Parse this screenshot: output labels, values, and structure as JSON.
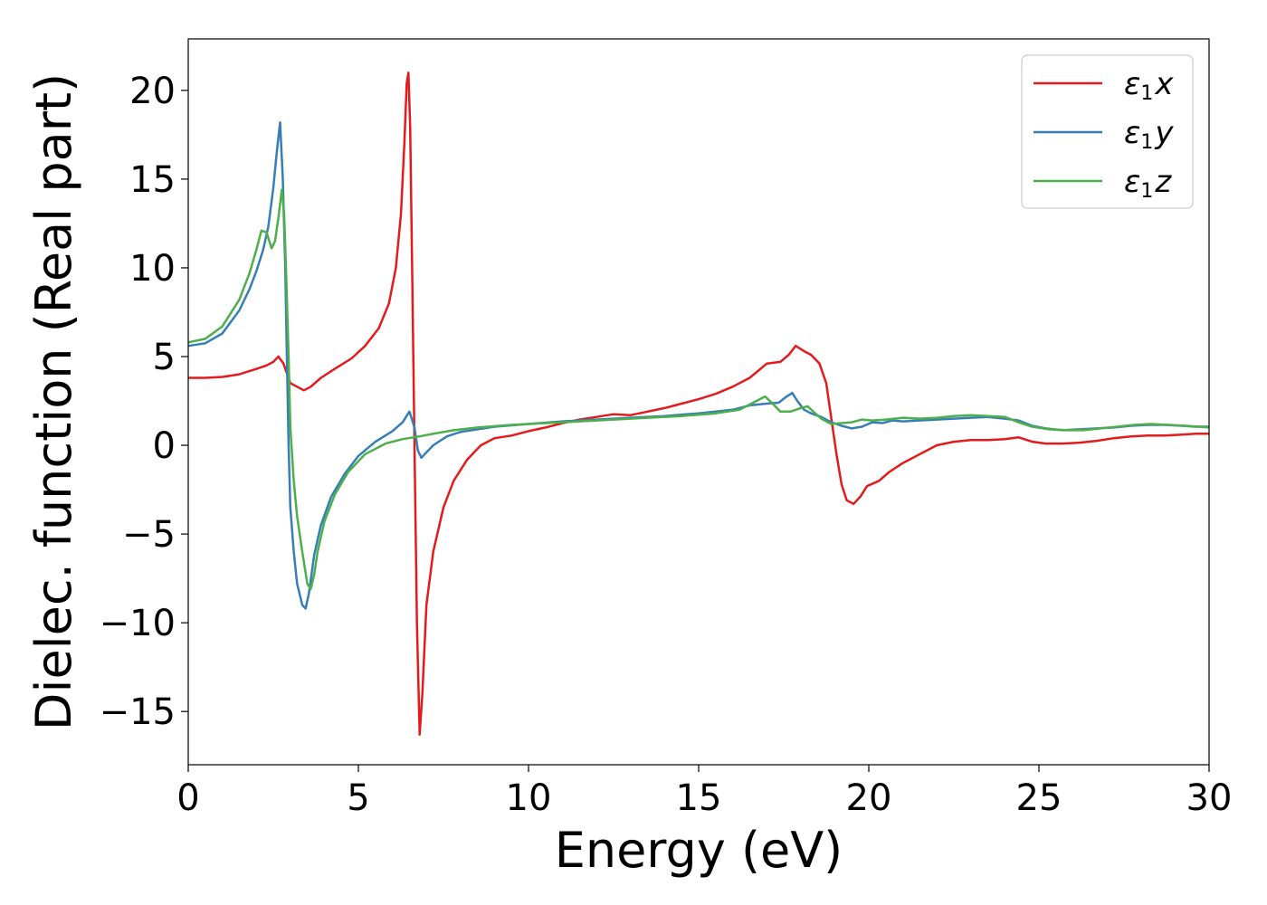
{
  "chart_data": {
    "type": "line",
    "title": "",
    "xlabel": "Energy (eV)",
    "ylabel": "Dielec. function (Real part)",
    "xlim": [
      0,
      30
    ],
    "ylim": [
      -18.0,
      22.9
    ],
    "xticks": [
      0,
      5,
      10,
      15,
      20,
      25,
      30
    ],
    "yticks": [
      -15,
      -10,
      -5,
      0,
      5,
      10,
      15,
      20
    ],
    "xtick_labels": [
      "0",
      "5",
      "10",
      "15",
      "20",
      "25",
      "30"
    ],
    "ytick_labels": [
      "−15",
      "−10",
      "−5",
      "0",
      "5",
      "10",
      "15",
      "20"
    ],
    "grid": false,
    "legend_position": "top-right",
    "series": [
      {
        "name": "ε1x",
        "legend": {
          "symbol": "ε",
          "sub": "1",
          "var": "x"
        },
        "color": "#e41a1c",
        "points": [
          [
            0,
            3.8
          ],
          [
            0.5,
            3.8
          ],
          [
            1.0,
            3.85
          ],
          [
            1.5,
            4.0
          ],
          [
            2.0,
            4.3
          ],
          [
            2.3,
            4.5
          ],
          [
            2.5,
            4.7
          ],
          [
            2.65,
            5.0
          ],
          [
            2.8,
            4.6
          ],
          [
            3.0,
            3.5
          ],
          [
            3.2,
            3.3
          ],
          [
            3.4,
            3.1
          ],
          [
            3.6,
            3.3
          ],
          [
            3.9,
            3.8
          ],
          [
            4.3,
            4.3
          ],
          [
            4.8,
            4.9
          ],
          [
            5.2,
            5.6
          ],
          [
            5.6,
            6.6
          ],
          [
            5.9,
            8.0
          ],
          [
            6.1,
            10.0
          ],
          [
            6.25,
            13.0
          ],
          [
            6.35,
            17.0
          ],
          [
            6.42,
            20.4
          ],
          [
            6.47,
            21.0
          ],
          [
            6.52,
            18.0
          ],
          [
            6.58,
            10.0
          ],
          [
            6.65,
            0.0
          ],
          [
            6.72,
            -10.0
          ],
          [
            6.8,
            -16.3
          ],
          [
            6.88,
            -14.0
          ],
          [
            7.0,
            -9.0
          ],
          [
            7.2,
            -6.0
          ],
          [
            7.5,
            -3.5
          ],
          [
            7.8,
            -2.0
          ],
          [
            8.2,
            -0.8
          ],
          [
            8.6,
            0.0
          ],
          [
            9.0,
            0.4
          ],
          [
            9.5,
            0.55
          ],
          [
            10.0,
            0.8
          ],
          [
            10.5,
            1.0
          ],
          [
            11.0,
            1.25
          ],
          [
            11.5,
            1.45
          ],
          [
            12.0,
            1.6
          ],
          [
            12.5,
            1.75
          ],
          [
            13.0,
            1.7
          ],
          [
            13.5,
            1.9
          ],
          [
            14.0,
            2.1
          ],
          [
            14.5,
            2.35
          ],
          [
            15.0,
            2.6
          ],
          [
            15.5,
            2.9
          ],
          [
            16.0,
            3.3
          ],
          [
            16.5,
            3.8
          ],
          [
            17.0,
            4.6
          ],
          [
            17.4,
            4.7
          ],
          [
            17.65,
            5.1
          ],
          [
            17.85,
            5.6
          ],
          [
            18.1,
            5.3
          ],
          [
            18.3,
            5.1
          ],
          [
            18.55,
            4.6
          ],
          [
            18.75,
            3.5
          ],
          [
            18.9,
            1.5
          ],
          [
            19.05,
            -0.5
          ],
          [
            19.2,
            -2.2
          ],
          [
            19.35,
            -3.1
          ],
          [
            19.55,
            -3.3
          ],
          [
            19.75,
            -2.9
          ],
          [
            19.95,
            -2.3
          ],
          [
            20.3,
            -2.0
          ],
          [
            20.6,
            -1.5
          ],
          [
            21.0,
            -1.0
          ],
          [
            21.5,
            -0.5
          ],
          [
            22.0,
            0.0
          ],
          [
            22.5,
            0.2
          ],
          [
            23.0,
            0.3
          ],
          [
            23.5,
            0.3
          ],
          [
            24.0,
            0.35
          ],
          [
            24.4,
            0.45
          ],
          [
            24.8,
            0.2
          ],
          [
            25.2,
            0.1
          ],
          [
            25.7,
            0.1
          ],
          [
            26.2,
            0.15
          ],
          [
            26.7,
            0.25
          ],
          [
            27.2,
            0.4
          ],
          [
            27.7,
            0.5
          ],
          [
            28.2,
            0.55
          ],
          [
            28.7,
            0.55
          ],
          [
            29.2,
            0.6
          ],
          [
            29.6,
            0.65
          ],
          [
            30.0,
            0.65
          ]
        ]
      },
      {
        "name": "ε1y",
        "legend": {
          "symbol": "ε",
          "sub": "1",
          "var": "y"
        },
        "color": "#377eb8",
        "points": [
          [
            0,
            5.6
          ],
          [
            0.5,
            5.75
          ],
          [
            1.0,
            6.3
          ],
          [
            1.5,
            7.6
          ],
          [
            1.8,
            8.8
          ],
          [
            2.0,
            9.8
          ],
          [
            2.2,
            11.0
          ],
          [
            2.35,
            12.3
          ],
          [
            2.5,
            14.5
          ],
          [
            2.6,
            16.5
          ],
          [
            2.7,
            18.2
          ],
          [
            2.78,
            15.0
          ],
          [
            2.85,
            10.0
          ],
          [
            2.9,
            5.0
          ],
          [
            2.95,
            0.0
          ],
          [
            3.0,
            -3.5
          ],
          [
            3.1,
            -6.0
          ],
          [
            3.2,
            -7.8
          ],
          [
            3.35,
            -9.0
          ],
          [
            3.45,
            -9.2
          ],
          [
            3.55,
            -8.3
          ],
          [
            3.7,
            -6.2
          ],
          [
            3.9,
            -4.5
          ],
          [
            4.2,
            -2.9
          ],
          [
            4.6,
            -1.6
          ],
          [
            5.0,
            -0.6
          ],
          [
            5.5,
            0.2
          ],
          [
            6.0,
            0.8
          ],
          [
            6.3,
            1.3
          ],
          [
            6.5,
            1.9
          ],
          [
            6.65,
            1.0
          ],
          [
            6.75,
            -0.3
          ],
          [
            6.85,
            -0.7
          ],
          [
            7.0,
            -0.4
          ],
          [
            7.2,
            0.0
          ],
          [
            7.6,
            0.5
          ],
          [
            8.0,
            0.75
          ],
          [
            9.0,
            1.05
          ],
          [
            10.0,
            1.2
          ],
          [
            11.0,
            1.35
          ],
          [
            12.0,
            1.45
          ],
          [
            13.0,
            1.55
          ],
          [
            14.0,
            1.65
          ],
          [
            15.0,
            1.8
          ],
          [
            16.0,
            2.0
          ],
          [
            16.5,
            2.25
          ],
          [
            17.0,
            2.35
          ],
          [
            17.35,
            2.4
          ],
          [
            17.55,
            2.7
          ],
          [
            17.75,
            2.95
          ],
          [
            17.9,
            2.5
          ],
          [
            18.1,
            2.0
          ],
          [
            18.3,
            1.8
          ],
          [
            18.6,
            1.6
          ],
          [
            18.9,
            1.3
          ],
          [
            19.2,
            1.1
          ],
          [
            19.5,
            0.95
          ],
          [
            19.8,
            1.05
          ],
          [
            20.1,
            1.3
          ],
          [
            20.4,
            1.25
          ],
          [
            20.7,
            1.4
          ],
          [
            21.0,
            1.35
          ],
          [
            21.5,
            1.4
          ],
          [
            22.0,
            1.45
          ],
          [
            22.5,
            1.5
          ],
          [
            23.0,
            1.55
          ],
          [
            23.5,
            1.6
          ],
          [
            24.0,
            1.5
          ],
          [
            24.4,
            1.4
          ],
          [
            24.8,
            1.1
          ],
          [
            25.2,
            0.95
          ],
          [
            25.7,
            0.85
          ],
          [
            26.2,
            0.9
          ],
          [
            26.7,
            0.95
          ],
          [
            27.2,
            1.0
          ],
          [
            27.7,
            1.1
          ],
          [
            28.2,
            1.15
          ],
          [
            28.7,
            1.15
          ],
          [
            29.2,
            1.1
          ],
          [
            29.6,
            1.05
          ],
          [
            30.0,
            1.05
          ]
        ]
      },
      {
        "name": "ε1z",
        "legend": {
          "symbol": "ε",
          "sub": "1",
          "var": "z"
        },
        "color": "#4daf4a",
        "points": [
          [
            0,
            5.8
          ],
          [
            0.5,
            6.0
          ],
          [
            1.0,
            6.7
          ],
          [
            1.5,
            8.2
          ],
          [
            1.8,
            9.7
          ],
          [
            2.0,
            11.0
          ],
          [
            2.15,
            12.1
          ],
          [
            2.3,
            12.0
          ],
          [
            2.45,
            11.1
          ],
          [
            2.55,
            11.5
          ],
          [
            2.65,
            12.8
          ],
          [
            2.75,
            14.4
          ],
          [
            2.82,
            13.0
          ],
          [
            2.88,
            9.5
          ],
          [
            2.95,
            5.0
          ],
          [
            3.0,
            1.0
          ],
          [
            3.1,
            -2.0
          ],
          [
            3.2,
            -4.0
          ],
          [
            3.35,
            -6.0
          ],
          [
            3.5,
            -7.8
          ],
          [
            3.6,
            -8.1
          ],
          [
            3.7,
            -7.3
          ],
          [
            3.8,
            -6.0
          ],
          [
            4.0,
            -4.3
          ],
          [
            4.3,
            -2.8
          ],
          [
            4.7,
            -1.5
          ],
          [
            5.2,
            -0.5
          ],
          [
            5.8,
            0.1
          ],
          [
            6.3,
            0.35
          ],
          [
            6.8,
            0.5
          ],
          [
            7.2,
            0.65
          ],
          [
            7.8,
            0.85
          ],
          [
            8.5,
            1.0
          ],
          [
            9.5,
            1.15
          ],
          [
            10.5,
            1.25
          ],
          [
            11.5,
            1.35
          ],
          [
            12.5,
            1.45
          ],
          [
            13.5,
            1.55
          ],
          [
            14.5,
            1.65
          ],
          [
            15.5,
            1.8
          ],
          [
            16.2,
            2.0
          ],
          [
            16.6,
            2.4
          ],
          [
            16.95,
            2.75
          ],
          [
            17.15,
            2.4
          ],
          [
            17.4,
            1.9
          ],
          [
            17.7,
            1.9
          ],
          [
            18.0,
            2.1
          ],
          [
            18.2,
            2.2
          ],
          [
            18.4,
            1.85
          ],
          [
            18.6,
            1.5
          ],
          [
            18.9,
            1.2
          ],
          [
            19.2,
            1.25
          ],
          [
            19.5,
            1.3
          ],
          [
            19.8,
            1.45
          ],
          [
            20.1,
            1.4
          ],
          [
            20.5,
            1.45
          ],
          [
            21.0,
            1.55
          ],
          [
            21.5,
            1.5
          ],
          [
            22.0,
            1.55
          ],
          [
            22.5,
            1.65
          ],
          [
            23.0,
            1.7
          ],
          [
            23.5,
            1.65
          ],
          [
            24.0,
            1.6
          ],
          [
            24.4,
            1.3
          ],
          [
            24.8,
            1.05
          ],
          [
            25.3,
            0.9
          ],
          [
            25.8,
            0.85
          ],
          [
            26.3,
            0.85
          ],
          [
            26.8,
            0.95
          ],
          [
            27.3,
            1.05
          ],
          [
            27.8,
            1.15
          ],
          [
            28.3,
            1.2
          ],
          [
            28.8,
            1.15
          ],
          [
            29.3,
            1.1
          ],
          [
            29.7,
            1.05
          ],
          [
            30.0,
            1.0
          ]
        ]
      }
    ]
  }
}
